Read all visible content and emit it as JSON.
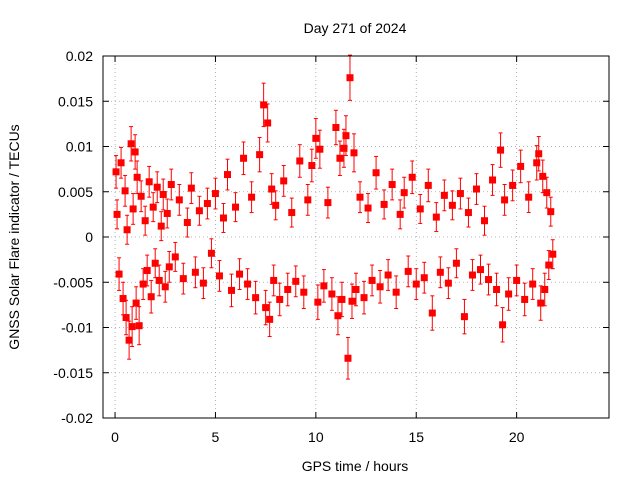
{
  "chart_data": {
    "type": "scatter",
    "title": "Day 271 of 2024",
    "xlabel": "GPS time / hours",
    "ylabel": "GNSS Solar Flare indicator / TECUs",
    "xlim": [
      -0.6,
      24.6
    ],
    "ylim": [
      -0.02,
      0.02
    ],
    "xticks": [
      0,
      5,
      10,
      15,
      20
    ],
    "xtick_labels": [
      "0",
      "5",
      "10",
      "15",
      "20"
    ],
    "yticks": [
      -0.02,
      -0.015,
      -0.01,
      -0.005,
      0,
      0.005,
      0.01,
      0.015,
      0.02
    ],
    "ytick_labels": [
      "-0.02",
      "-0.015",
      "-0.01",
      "-0.005",
      "0",
      "0.005",
      "0.01",
      "0.015",
      "0.02"
    ],
    "grid": true,
    "marker": "square",
    "error_bars": true,
    "series_color": "#ff0000",
    "series": [
      {
        "x": [
          0.05,
          0.1,
          0.2,
          0.3,
          0.4,
          0.5,
          0.55,
          0.6,
          0.7,
          0.8,
          0.85,
          0.9,
          1.0,
          1.05,
          1.1,
          1.2,
          1.3,
          1.4,
          1.5,
          1.6,
          1.7,
          1.8,
          1.9,
          2.0,
          2.1,
          2.2,
          2.3,
          2.4,
          2.5,
          2.6,
          2.7,
          2.8,
          3.0,
          3.2,
          3.4,
          3.6,
          3.8,
          4.0,
          4.2,
          4.4,
          4.6,
          4.8,
          5.0,
          5.2,
          5.4,
          5.6,
          5.8,
          6.0,
          6.2,
          6.4,
          6.6,
          6.8,
          7.0,
          7.2,
          7.4,
          7.5,
          7.6,
          7.7,
          7.8,
          7.9,
          8.0,
          8.2,
          8.4,
          8.6,
          8.8,
          9.0,
          9.2,
          9.4,
          9.6,
          9.8,
          10.0,
          10.1,
          10.2,
          10.4,
          10.6,
          10.8,
          11.0,
          11.1,
          11.2,
          11.3,
          11.4,
          11.5,
          11.6,
          11.7,
          11.8,
          11.9,
          12.0,
          12.2,
          12.4,
          12.6,
          12.8,
          13.0,
          13.2,
          13.4,
          13.6,
          13.8,
          14.0,
          14.2,
          14.4,
          14.6,
          14.8,
          15.0,
          15.2,
          15.4,
          15.6,
          15.8,
          16.0,
          16.2,
          16.4,
          16.6,
          16.8,
          17.0,
          17.2,
          17.4,
          17.6,
          17.8,
          18.0,
          18.2,
          18.4,
          18.6,
          18.8,
          19.0,
          19.2,
          19.3,
          19.4,
          19.6,
          19.8,
          20.0,
          20.2,
          20.4,
          20.6,
          20.8,
          21.0,
          21.1,
          21.2,
          21.3,
          21.4,
          21.5,
          21.6,
          21.7,
          21.8
        ],
        "y": [
          0.0072,
          0.0025,
          -0.0041,
          0.0082,
          -0.0068,
          0.0051,
          -0.0089,
          0.0008,
          -0.0114,
          0.0103,
          -0.0099,
          0.0031,
          0.0094,
          -0.0073,
          0.0066,
          -0.0098,
          0.0045,
          -0.0052,
          0.0018,
          -0.0037,
          0.0061,
          -0.0066,
          0.0033,
          -0.0029,
          0.0055,
          -0.0048,
          0.0012,
          0.0047,
          -0.0055,
          0.0026,
          -0.0033,
          0.0058,
          -0.0022,
          0.0041,
          -0.0046,
          0.0016,
          0.0054,
          -0.0039,
          0.0029,
          -0.0051,
          0.0037,
          -0.0018,
          0.0048,
          -0.0043,
          0.0021,
          0.0069,
          -0.0059,
          0.0033,
          -0.0041,
          0.0087,
          -0.0052,
          0.0044,
          -0.0067,
          0.0091,
          0.0146,
          -0.0078,
          0.0126,
          -0.0091,
          0.0053,
          -0.0048,
          0.0035,
          -0.0069,
          0.0062,
          -0.0058,
          0.0027,
          -0.0049,
          0.0084,
          -0.0061,
          0.0041,
          0.0079,
          0.0109,
          -0.0072,
          0.0097,
          -0.0054,
          0.0038,
          -0.0063,
          0.0121,
          -0.0087,
          0.0087,
          -0.0069,
          0.0098,
          0.0112,
          -0.0134,
          0.0176,
          -0.0071,
          0.0093,
          -0.0058,
          0.0044,
          -0.0067,
          0.0032,
          -0.0048,
          0.0071,
          -0.0055,
          0.0036,
          -0.0042,
          0.0058,
          -0.0061,
          0.0025,
          0.0049,
          -0.0038,
          0.0066,
          -0.0052,
          0.0031,
          -0.0045,
          0.0057,
          -0.0084,
          0.0022,
          -0.0039,
          0.0046,
          -0.0051,
          0.0035,
          -0.0029,
          0.0048,
          -0.0088,
          0.0027,
          -0.0042,
          0.0053,
          -0.0036,
          0.0018,
          -0.0047,
          0.0063,
          -0.0058,
          0.0096,
          -0.0097,
          0.0041,
          -0.0063,
          0.0057,
          -0.0048,
          0.0078,
          -0.0069,
          0.0044,
          -0.0052,
          0.0082,
          0.0092,
          -0.0073,
          0.0067,
          -0.0058,
          0.0049,
          -0.0031,
          0.0028,
          -0.0019
        ],
        "err": [
          0.0018,
          0.0016,
          0.0018,
          0.0017,
          0.0018,
          0.0017,
          0.0019,
          0.0016,
          0.0021,
          0.0019,
          0.0022,
          0.0017,
          0.0019,
          0.0018,
          0.0018,
          0.0021,
          0.0017,
          0.0017,
          0.0016,
          0.0017,
          0.0017,
          0.0018,
          0.0016,
          0.0016,
          0.0017,
          0.0017,
          0.0016,
          0.0017,
          0.0017,
          0.0016,
          0.0017,
          0.0017,
          0.0016,
          0.0017,
          0.0017,
          0.0016,
          0.0017,
          0.0017,
          0.0016,
          0.0017,
          0.0017,
          0.0016,
          0.0017,
          0.0017,
          0.0016,
          0.0017,
          0.0018,
          0.0016,
          0.0017,
          0.0018,
          0.0017,
          0.0017,
          0.0018,
          0.0019,
          0.0024,
          0.0019,
          0.0021,
          0.0019,
          0.0017,
          0.0017,
          0.0016,
          0.0018,
          0.0017,
          0.0018,
          0.0016,
          0.0017,
          0.0018,
          0.0018,
          0.0017,
          0.0018,
          0.0022,
          0.0019,
          0.0021,
          0.0018,
          0.0017,
          0.0018,
          0.0019,
          0.0021,
          0.0019,
          0.0019,
          0.0021,
          0.0022,
          0.0023,
          0.0025,
          0.0019,
          0.0021,
          0.0018,
          0.0017,
          0.0018,
          0.0016,
          0.0017,
          0.0018,
          0.0018,
          0.0016,
          0.0017,
          0.0017,
          0.0018,
          0.0016,
          0.0017,
          0.0017,
          0.0018,
          0.0017,
          0.0016,
          0.0017,
          0.0018,
          0.0019,
          0.0016,
          0.0017,
          0.0017,
          0.0017,
          0.0016,
          0.0016,
          0.0017,
          0.0019,
          0.0016,
          0.0017,
          0.0017,
          0.0016,
          0.0016,
          0.0017,
          0.0017,
          0.0018,
          0.0019,
          0.0019,
          0.0017,
          0.0018,
          0.0017,
          0.0017,
          0.0018,
          0.0018,
          0.0017,
          0.0017,
          0.0019,
          0.0019,
          0.0019,
          0.0018,
          0.0018,
          0.0017,
          0.0016,
          0.0016,
          0.0016
        ]
      }
    ]
  }
}
